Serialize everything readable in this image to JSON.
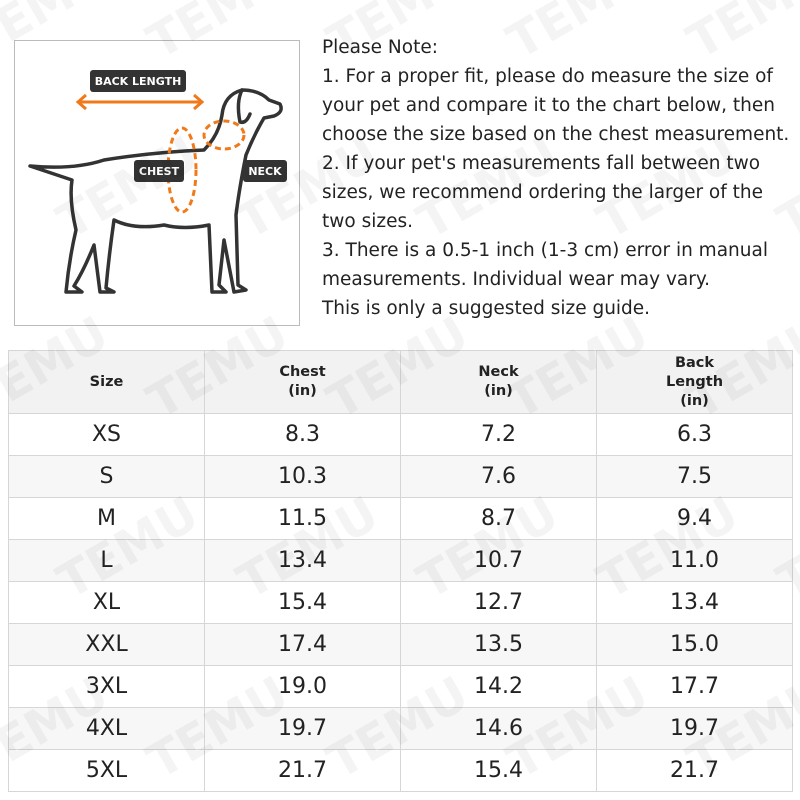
{
  "watermark": "TEMU",
  "illustration": {
    "labels": [
      "BACK LENGTH",
      "CHEST",
      "NECK"
    ]
  },
  "note": {
    "title": "Please Note:",
    "paragraphs": [
      "1. For a proper fit, please do measure the size of your pet and compare it to the chart below, then choose the size based on the chest measurement.",
      "2. If your pet's measurements fall between two sizes, we recommend ordering the larger of the two sizes.",
      "3. There is a 0.5-1 inch (1-3 cm) error in manual measurements. Individual wear may vary.",
      "This is only a suggested size guide."
    ]
  },
  "table": {
    "header": [
      [
        "Size"
      ],
      [
        "Chest",
        "(in)"
      ],
      [
        "Neck",
        "(in)"
      ],
      [
        "Back",
        "Length",
        "(in)"
      ]
    ],
    "rows": [
      [
        "XS",
        "8.3",
        "7.2",
        "6.3"
      ],
      [
        "S",
        "10.3",
        "7.6",
        "7.5"
      ],
      [
        "M",
        "11.5",
        "8.7",
        "9.4"
      ],
      [
        "L",
        "13.4",
        "10.7",
        "11.0"
      ],
      [
        "XL",
        "15.4",
        "12.7",
        "13.4"
      ],
      [
        "XXL",
        "17.4",
        "13.5",
        "15.0"
      ],
      [
        "3XL",
        "19.0",
        "14.2",
        "17.7"
      ],
      [
        "4XL",
        "19.7",
        "14.6",
        "19.7"
      ],
      [
        "5XL",
        "21.7",
        "15.4",
        "21.7"
      ]
    ]
  }
}
